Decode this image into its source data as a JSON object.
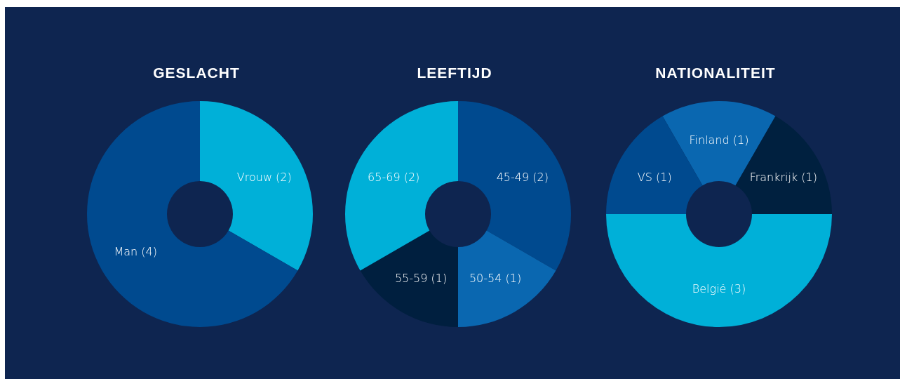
{
  "chart_data": [
    {
      "type": "donut",
      "title": "GESLACHT",
      "categories": [
        "Vrouw (2)",
        "Man (4)"
      ],
      "values": [
        2,
        4
      ],
      "colors": [
        "#00b0d8",
        "#004a8f"
      ]
    },
    {
      "type": "donut",
      "title": "LEEFTIJD",
      "categories": [
        "45-49 (2)",
        "50-54 (1)",
        "55-59 (1)",
        "65-69 (2)"
      ],
      "values": [
        2,
        1,
        1,
        2
      ],
      "colors": [
        "#004a8f",
        "#0a67b0",
        "#001f3f",
        "#00b0d8"
      ]
    },
    {
      "type": "donut",
      "title": "NATIONALITEIT",
      "categories": [
        "Finland (1)",
        "Frankrijk (1)",
        "België (3)",
        "VS (1)"
      ],
      "values": [
        1,
        1,
        3,
        1
      ],
      "colors": [
        "#0a67b0",
        "#00203f",
        "#00b0d8",
        "#004a8f"
      ]
    }
  ]
}
